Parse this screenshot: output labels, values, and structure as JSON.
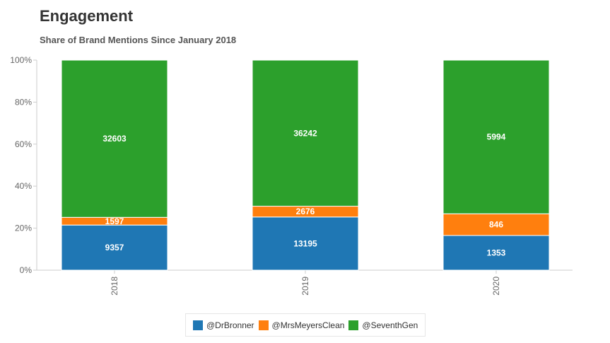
{
  "title": "Engagement",
  "subtitle": "Share of Brand Mentions Since January 2018",
  "chart_data": {
    "type": "bar",
    "stacked": true,
    "normalized": true,
    "categories": [
      "2018",
      "2019",
      "2020"
    ],
    "series": [
      {
        "name": "@DrBronner",
        "color": "#1f77b4",
        "values": [
          9357,
          13195,
          1353
        ]
      },
      {
        "name": "@MrsMeyersClean",
        "color": "#ff7f0e",
        "values": [
          1597,
          2676,
          846
        ]
      },
      {
        "name": "@SeventhGen",
        "color": "#2ca02c",
        "values": [
          32603,
          36242,
          5994
        ]
      }
    ],
    "yticks": [
      "0%",
      "20%",
      "40%",
      "60%",
      "80%",
      "100%"
    ],
    "ylim": [
      0,
      100
    ],
    "xlabel": "",
    "ylabel": "",
    "grid": false,
    "legend_position": "bottom"
  }
}
